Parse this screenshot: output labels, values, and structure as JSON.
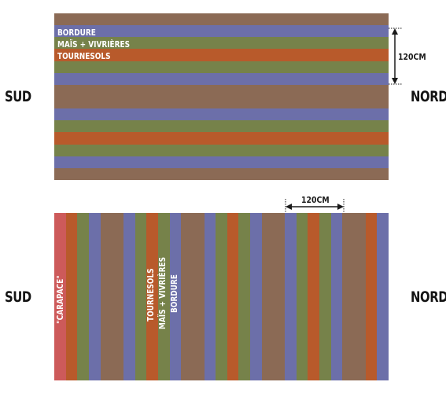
{
  "colors": {
    "soil": "#8b6a55",
    "bordure": "#6c6fa9",
    "mais": "#76824a",
    "tournesols": "#b85a2b",
    "carapace": "#cd5a5a",
    "label_text": "#ffffff",
    "annotation": "#1a1a1a"
  },
  "top_diagram": {
    "sud_label": "SUD",
    "nord_label": "NORD",
    "labels": {
      "bordure": "BORDURE",
      "mais": "MAÏS + VIVRIÈRES",
      "tournesols": "TOURNESOLS"
    },
    "dimension": "120CM",
    "bands": [
      "soil",
      "bordure",
      "mais",
      "tournesols",
      "mais",
      "bordure",
      "soil",
      "soil",
      "bordure",
      "mais",
      "tournesols",
      "mais",
      "bordure",
      "soil"
    ]
  },
  "bottom_diagram": {
    "sud_label": "SUD",
    "nord_label": "NORD",
    "carapace_label": "\"CARAPACE\"",
    "labels": {
      "tournesols": "TOURNESOLS",
      "mais": "MAÏS + VIVRIÈRES",
      "bordure": "BORDURE"
    },
    "dimension": "120CM",
    "bands": [
      "carapace",
      "tournesols",
      "mais",
      "bordure",
      "soil",
      "bordure",
      "mais",
      "tournesols",
      "mais",
      "bordure",
      "soil",
      "bordure",
      "mais",
      "tournesols",
      "mais",
      "bordure",
      "soil",
      "bordure",
      "mais",
      "tournesols",
      "mais",
      "bordure",
      "soil",
      "tournesols",
      "bordure"
    ]
  }
}
